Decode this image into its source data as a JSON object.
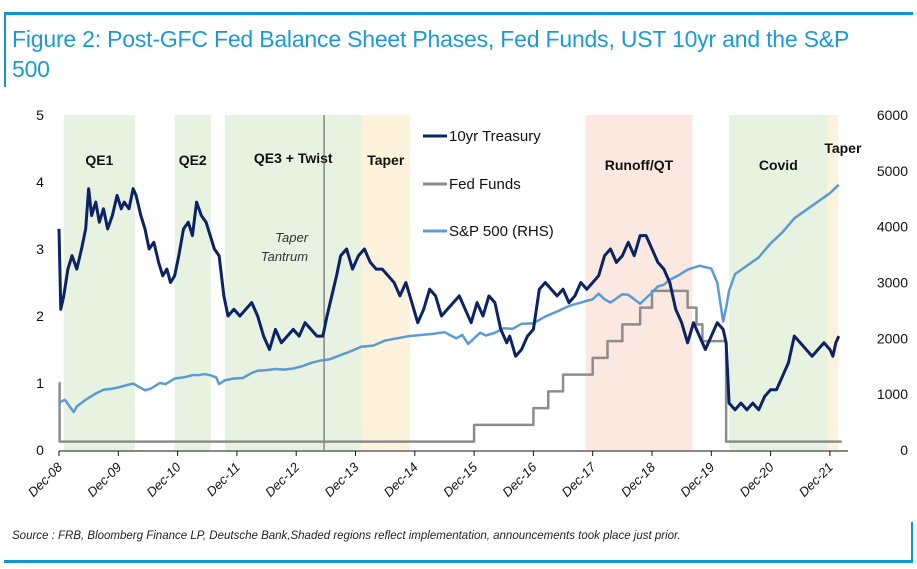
{
  "figure": {
    "title": "Figure 2: Post-GFC Fed Balance Sheet Phases, Fed Funds, UST 10yr and the S&P 500",
    "source": "Source : FRB, Bloomberg Finance LP, Deutsche Bank,Shaded regions reflect implementation, announcements took place just prior."
  },
  "chart_data": {
    "type": "line",
    "title": "Figure 2: Post-GFC Fed Balance Sheet Phases, Fed Funds, UST 10yr and the S&P 500",
    "x_unit": "years since Dec-2008",
    "x_range": [
      0,
      13.3
    ],
    "x_ticks": [
      "Dec-08",
      "Dec-09",
      "Dec-10",
      "Dec-11",
      "Dec-12",
      "Dec-13",
      "Dec-14",
      "Dec-15",
      "Dec-16",
      "Dec-17",
      "Dec-18",
      "Dec-19",
      "Dec-20",
      "Dec-21"
    ],
    "y_left": {
      "label": "",
      "range": [
        0,
        5
      ],
      "ticks": [
        "0",
        "1",
        "2",
        "3",
        "4",
        "5"
      ]
    },
    "y_right": {
      "label": "",
      "range": [
        0,
        6000
      ],
      "ticks": [
        "0",
        "1000",
        "2000",
        "3000",
        "4000",
        "5000",
        "6000"
      ]
    },
    "grid": false,
    "legend": {
      "placement": "top-center",
      "entries": [
        {
          "name": "10yr Treasury",
          "color": "#0b2265"
        },
        {
          "name": "Fed Funds",
          "color": "#8c8c8c"
        },
        {
          "name": "S&P 500 (RHS)",
          "color": "#5b9bd5"
        }
      ]
    },
    "phases": [
      {
        "label": "QE1",
        "start": 0.08,
        "end": 1.28,
        "color": "#e8f2e1"
      },
      {
        "label": "QE2",
        "start": 1.95,
        "end": 2.56,
        "color": "#e8f2e1"
      },
      {
        "label": "QE3 + Twist",
        "start": 2.8,
        "end": 5.1,
        "color": "#e8f2e1"
      },
      {
        "label": "Taper",
        "start": 5.1,
        "end": 5.92,
        "color": "#fdf3dc"
      },
      {
        "label": "Runoff/QT",
        "start": 8.88,
        "end": 10.68,
        "color": "#fbe8e0"
      },
      {
        "label": "Covid",
        "start": 11.3,
        "end": 12.96,
        "color": "#e8f2e1"
      },
      {
        "label": "Taper",
        "start": 12.96,
        "end": 13.14,
        "color": "#fdf3dc"
      }
    ],
    "annotations": [
      {
        "text": "Taper Tantrum",
        "x": 4.47,
        "marker": "vertical-line"
      }
    ],
    "series": [
      {
        "name": "10yr Treasury",
        "axis": "left",
        "x": [
          0,
          0.03,
          0.08,
          0.15,
          0.22,
          0.3,
          0.38,
          0.45,
          0.5,
          0.55,
          0.62,
          0.68,
          0.75,
          0.82,
          0.9,
          0.98,
          1.05,
          1.1,
          1.18,
          1.25,
          1.3,
          1.38,
          1.45,
          1.52,
          1.6,
          1.68,
          1.75,
          1.82,
          1.88,
          1.95,
          2.02,
          2.1,
          2.18,
          2.25,
          2.32,
          2.4,
          2.48,
          2.55,
          2.62,
          2.7,
          2.78,
          2.85,
          2.95,
          3.05,
          3.15,
          3.25,
          3.35,
          3.45,
          3.55,
          3.65,
          3.75,
          3.85,
          3.95,
          4.05,
          4.15,
          4.25,
          4.35,
          4.45,
          4.52,
          4.6,
          4.68,
          4.75,
          4.85,
          4.95,
          5.05,
          5.15,
          5.25,
          5.35,
          5.45,
          5.55,
          5.65,
          5.75,
          5.85,
          5.95,
          6.05,
          6.15,
          6.25,
          6.35,
          6.45,
          6.55,
          6.65,
          6.75,
          6.85,
          6.95,
          7.05,
          7.15,
          7.25,
          7.35,
          7.45,
          7.55,
          7.6,
          7.7,
          7.8,
          7.9,
          8.0,
          8.1,
          8.2,
          8.3,
          8.4,
          8.5,
          8.6,
          8.7,
          8.8,
          8.9,
          9.0,
          9.1,
          9.2,
          9.3,
          9.4,
          9.5,
          9.6,
          9.7,
          9.8,
          9.9,
          10.0,
          10.1,
          10.2,
          10.3,
          10.4,
          10.5,
          10.6,
          10.7,
          10.8,
          10.9,
          11.0,
          11.1,
          11.2,
          11.25,
          11.3,
          11.4,
          11.5,
          11.6,
          11.7,
          11.8,
          11.9,
          12.0,
          12.1,
          12.2,
          12.3,
          12.4,
          12.5,
          12.6,
          12.7,
          12.8,
          12.9,
          13.0,
          13.05,
          13.1,
          13.15
        ],
        "values": [
          3.3,
          2.1,
          2.3,
          2.7,
          2.9,
          2.7,
          3.0,
          3.3,
          3.9,
          3.5,
          3.7,
          3.4,
          3.6,
          3.3,
          3.5,
          3.8,
          3.6,
          3.7,
          3.6,
          3.9,
          3.8,
          3.5,
          3.3,
          3.0,
          3.1,
          2.8,
          2.6,
          2.7,
          2.5,
          2.6,
          2.9,
          3.3,
          3.4,
          3.2,
          3.7,
          3.5,
          3.4,
          3.2,
          3.0,
          2.9,
          2.3,
          2.0,
          2.1,
          2.0,
          2.1,
          2.2,
          2.0,
          1.7,
          1.5,
          1.8,
          1.6,
          1.7,
          1.8,
          1.7,
          1.9,
          1.8,
          1.7,
          1.7,
          2.0,
          2.3,
          2.6,
          2.9,
          3.0,
          2.7,
          2.9,
          3.0,
          2.8,
          2.7,
          2.7,
          2.6,
          2.5,
          2.3,
          2.5,
          2.2,
          1.9,
          2.1,
          2.4,
          2.3,
          2.0,
          2.1,
          2.2,
          2.3,
          2.1,
          1.9,
          2.2,
          2.0,
          2.3,
          2.2,
          1.8,
          1.6,
          1.7,
          1.4,
          1.5,
          1.7,
          1.8,
          2.4,
          2.5,
          2.4,
          2.3,
          2.4,
          2.2,
          2.3,
          2.5,
          2.4,
          2.5,
          2.6,
          2.9,
          3.0,
          2.8,
          2.9,
          3.1,
          2.9,
          3.2,
          3.2,
          3.0,
          2.8,
          2.7,
          2.5,
          2.1,
          1.9,
          1.6,
          1.9,
          1.7,
          1.5,
          1.7,
          1.9,
          1.8,
          1.6,
          0.7,
          0.6,
          0.7,
          0.6,
          0.7,
          0.6,
          0.8,
          0.9,
          0.9,
          1.1,
          1.3,
          1.7,
          1.6,
          1.5,
          1.4,
          1.5,
          1.6,
          1.5,
          1.4,
          1.6,
          1.7
        ]
      },
      {
        "name": "Fed Funds",
        "axis": "left",
        "step": true,
        "x": [
          0,
          0.01,
          7.0,
          8.0,
          8.25,
          8.5,
          9.0,
          9.25,
          9.5,
          9.8,
          10.0,
          10.6,
          10.75,
          10.85,
          11.25,
          13.2
        ],
        "values": [
          1.0,
          0.125,
          0.375,
          0.625,
          0.875,
          1.125,
          1.375,
          1.625,
          1.875,
          2.125,
          2.375,
          2.125,
          1.875,
          1.625,
          0.125,
          0.125
        ]
      },
      {
        "name": "S&P 500 (RHS)",
        "axis": "right",
        "x": [
          0,
          0.1,
          0.2,
          0.25,
          0.3,
          0.45,
          0.6,
          0.75,
          0.9,
          1.0,
          1.1,
          1.25,
          1.35,
          1.45,
          1.55,
          1.7,
          1.8,
          1.95,
          2.1,
          2.25,
          2.35,
          2.45,
          2.55,
          2.65,
          2.7,
          2.8,
          2.95,
          3.1,
          3.25,
          3.35,
          3.5,
          3.65,
          3.8,
          3.95,
          4.1,
          4.25,
          4.4,
          4.55,
          4.7,
          4.9,
          5.1,
          5.3,
          5.5,
          5.7,
          5.9,
          6.1,
          6.3,
          6.5,
          6.7,
          6.8,
          6.9,
          7.1,
          7.2,
          7.35,
          7.5,
          7.65,
          7.8,
          8.0,
          8.2,
          8.4,
          8.6,
          8.8,
          9.0,
          9.1,
          9.2,
          9.3,
          9.5,
          9.6,
          9.8,
          9.9,
          10.0,
          10.1,
          10.2,
          10.3,
          10.45,
          10.6,
          10.8,
          11.0,
          11.1,
          11.2,
          11.25,
          11.3,
          11.4,
          11.6,
          11.8,
          12.0,
          12.2,
          12.4,
          12.6,
          12.8,
          13.0,
          13.1,
          13.15
        ],
        "values": [
          850,
          900,
          750,
          680,
          780,
          900,
          1000,
          1080,
          1100,
          1120,
          1150,
          1190,
          1130,
          1070,
          1100,
          1200,
          1180,
          1280,
          1300,
          1340,
          1340,
          1360,
          1340,
          1300,
          1180,
          1250,
          1280,
          1290,
          1380,
          1420,
          1430,
          1450,
          1440,
          1460,
          1500,
          1560,
          1600,
          1620,
          1680,
          1760,
          1850,
          1870,
          1960,
          2000,
          2040,
          2060,
          2080,
          2110,
          2000,
          2060,
          1900,
          2100,
          2050,
          2100,
          2180,
          2170,
          2260,
          2270,
          2390,
          2480,
          2580,
          2640,
          2700,
          2800,
          2700,
          2640,
          2790,
          2780,
          2620,
          2720,
          2820,
          2930,
          2960,
          3050,
          3130,
          3230,
          3300,
          3250,
          3000,
          2300,
          2550,
          2850,
          3150,
          3300,
          3450,
          3700,
          3900,
          4150,
          4300,
          4450,
          4600,
          4700,
          4750
        ]
      }
    ]
  }
}
